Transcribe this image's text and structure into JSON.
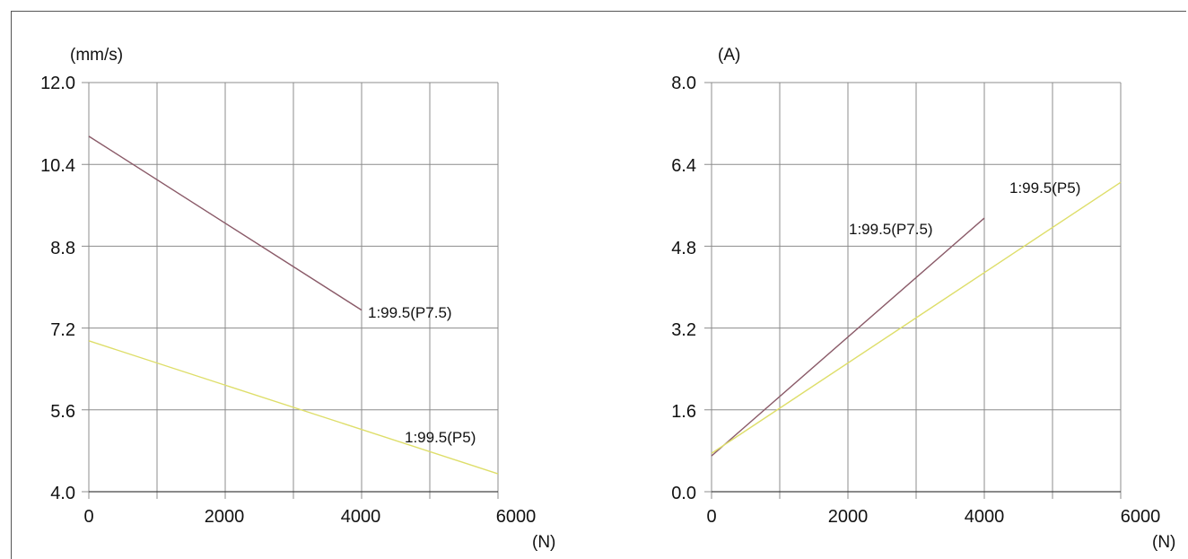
{
  "chart_data": [
    {
      "type": "line",
      "ylabel": "(mm/s)",
      "xlabel": "(N)",
      "xlim": [
        0,
        6000
      ],
      "ylim": [
        4.0,
        12.0
      ],
      "x_ticks": [
        "0",
        "2000",
        "4000",
        "6000"
      ],
      "y_ticks": [
        "4.0",
        "5.6",
        "7.2",
        "8.8",
        "10.4",
        "12.0"
      ],
      "grid": true,
      "series": [
        {
          "name": "1:99.5(P7.5)",
          "color": "#8a5a68",
          "x": [
            0,
            4000
          ],
          "y": [
            10.95,
            7.55
          ]
        },
        {
          "name": "1:99.5(P5)",
          "color": "#dede6a",
          "x": [
            0,
            6000
          ],
          "y": [
            6.95,
            4.35
          ]
        }
      ]
    },
    {
      "type": "line",
      "ylabel": "(A)",
      "xlabel": "(N)",
      "xlim": [
        0,
        6000
      ],
      "ylim": [
        0.0,
        8.0
      ],
      "x_ticks": [
        "0",
        "2000",
        "4000",
        "6000"
      ],
      "y_ticks": [
        "0.0",
        "1.6",
        "3.2",
        "4.8",
        "6.4",
        "8.0"
      ],
      "grid": true,
      "series": [
        {
          "name": "1:99.5(P7.5)",
          "color": "#8a5a68",
          "x": [
            0,
            4000
          ],
          "y": [
            0.7,
            5.35
          ]
        },
        {
          "name": "1:99.5(P5)",
          "color": "#dede6a",
          "x": [
            0,
            6000
          ],
          "y": [
            0.75,
            6.05
          ]
        }
      ]
    }
  ]
}
